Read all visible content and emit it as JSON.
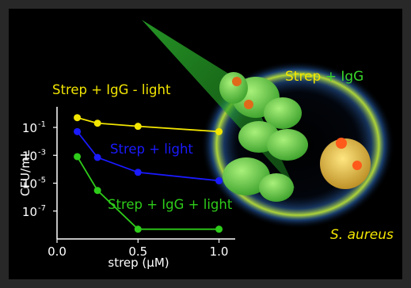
{
  "chart_data": {
    "type": "line",
    "xlabel": "strep (μM)",
    "ylabel": "CFU/mL",
    "yscale": "log",
    "xlim": [
      0.0,
      1.1
    ],
    "ylim": [
      1e-09,
      3
    ],
    "x_ticks": [
      "0.0",
      "0.5",
      "1.0"
    ],
    "y_ticks": [
      "10",
      "10",
      "10",
      "10"
    ],
    "y_tick_exponents": [
      "-1",
      "-3",
      "-5",
      "-7"
    ],
    "y_tick_values": [
      0.1,
      0.001,
      1e-05,
      1e-07
    ],
    "grid": false,
    "legend": "none (inline series labels)",
    "series": [
      {
        "name": "Strep + IgG - light",
        "color": "#f2e500",
        "x": [
          0.125,
          0.25,
          0.5,
          1.0
        ],
        "y": [
          0.5,
          0.2,
          0.12,
          0.05
        ]
      },
      {
        "name": "Strep + light",
        "color": "#1a1aff",
        "x": [
          0.125,
          0.25,
          0.5,
          1.0
        ],
        "y": [
          0.05,
          0.0007,
          6e-05,
          1.5e-05
        ]
      },
      {
        "name": "Strep + IgG + light",
        "color": "#2ecc1a",
        "x": [
          0.125,
          0.25,
          0.5,
          1.0
        ],
        "y": [
          0.0008,
          3e-06,
          5e-09,
          5e-09
        ]
      }
    ]
  },
  "annotations": {
    "strep": "Strep",
    "plus_igg": " + IgG",
    "organism": "S. aureus"
  },
  "colors": {
    "background": "#000000",
    "frame": "#282828",
    "beam": "#2eb82e",
    "igg_green": "#39d42a",
    "label_yellow": "#f2e500"
  }
}
